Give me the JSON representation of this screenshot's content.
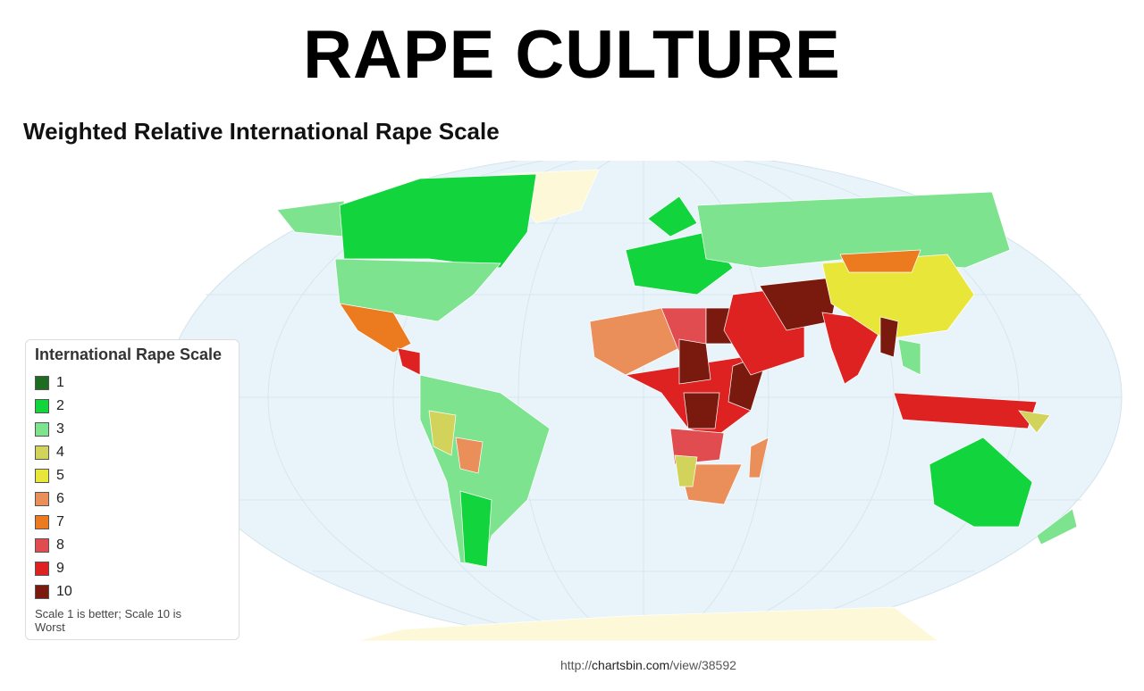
{
  "header": {
    "title": "RAPE CULTURE",
    "subtitle": "Weighted Relative International Rape Scale"
  },
  "legend": {
    "title": "International Rape Scale",
    "items": [
      {
        "label": "1",
        "color": "#1e6b22"
      },
      {
        "label": "2",
        "color": "#12d43c"
      },
      {
        "label": "3",
        "color": "#7ee38f"
      },
      {
        "label": "4",
        "color": "#d2d35a"
      },
      {
        "label": "5",
        "color": "#e9e63a"
      },
      {
        "label": "6",
        "color": "#ea8e5a"
      },
      {
        "label": "7",
        "color": "#ec7a1f"
      },
      {
        "label": "8",
        "color": "#e04c50"
      },
      {
        "label": "9",
        "color": "#de2222"
      },
      {
        "label": "10",
        "color": "#7a1a0e"
      }
    ],
    "note": "Scale 1 is better; Scale 10 is Worst"
  },
  "source": {
    "prefix": "http://",
    "domain": "chartsbin.com",
    "path": "/view/38592"
  }
}
